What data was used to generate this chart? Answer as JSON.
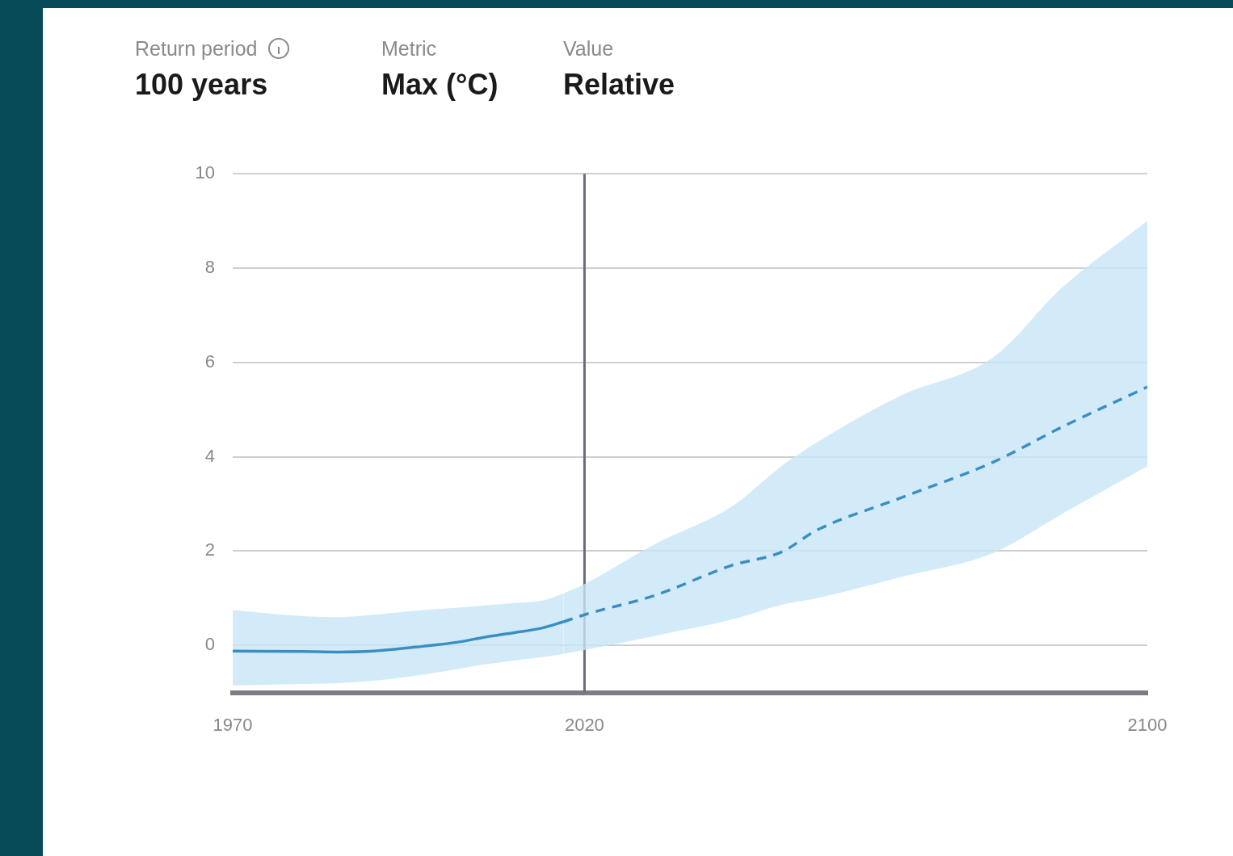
{
  "chart_data": {
    "type": "line",
    "annotations": [
      "Return period",
      "100 years",
      "Metric",
      "Max (°C)",
      "Value",
      "Relative"
    ],
    "series": [
      {
        "color": "#3a8fc2",
        "line_style": "solid",
        "x": [
          1970,
          1980,
          1985,
          1990,
          1997,
          2002,
          2006,
          2010,
          2014,
          2017
        ],
        "values": [
          -0.12,
          -0.13,
          -0.14,
          -0.12,
          -0.02,
          0.07,
          0.18,
          0.27,
          0.37,
          0.5
        ],
        "lower": [
          -0.85,
          -0.82,
          -0.8,
          -0.75,
          -0.62,
          -0.5,
          -0.4,
          -0.32,
          -0.25,
          -0.18
        ],
        "upper": [
          0.75,
          0.62,
          0.6,
          0.65,
          0.75,
          0.8,
          0.85,
          0.9,
          0.95,
          1.1
        ]
      },
      {
        "color": "#3a8fc2",
        "line_style": "dashed",
        "x": [
          2017,
          2020,
          2030,
          2041,
          2048,
          2053,
          2065,
          2078,
          2088,
          2100
        ],
        "values": [
          0.5,
          0.65,
          1.06,
          1.7,
          1.98,
          2.44,
          3.13,
          3.88,
          4.64,
          5.48
        ],
        "lower": [
          -0.18,
          -0.1,
          0.2,
          0.55,
          0.86,
          1.0,
          1.45,
          1.95,
          2.8,
          3.8
        ],
        "upper": [
          1.1,
          1.3,
          2.15,
          2.95,
          3.8,
          4.3,
          5.3,
          6.1,
          7.6,
          9.0
        ]
      }
    ],
    "xlim": [
      1970,
      2100
    ],
    "xticks": [
      1970,
      2020,
      2100
    ],
    "ylim": [
      -1,
      10
    ],
    "yticks": [
      0,
      2,
      4,
      6,
      8,
      10
    ],
    "grid": "y",
    "marker": "none",
    "ref_lines": [
      {
        "axis": "x",
        "value": 2020,
        "color": "#6b6b78"
      }
    ]
  }
}
